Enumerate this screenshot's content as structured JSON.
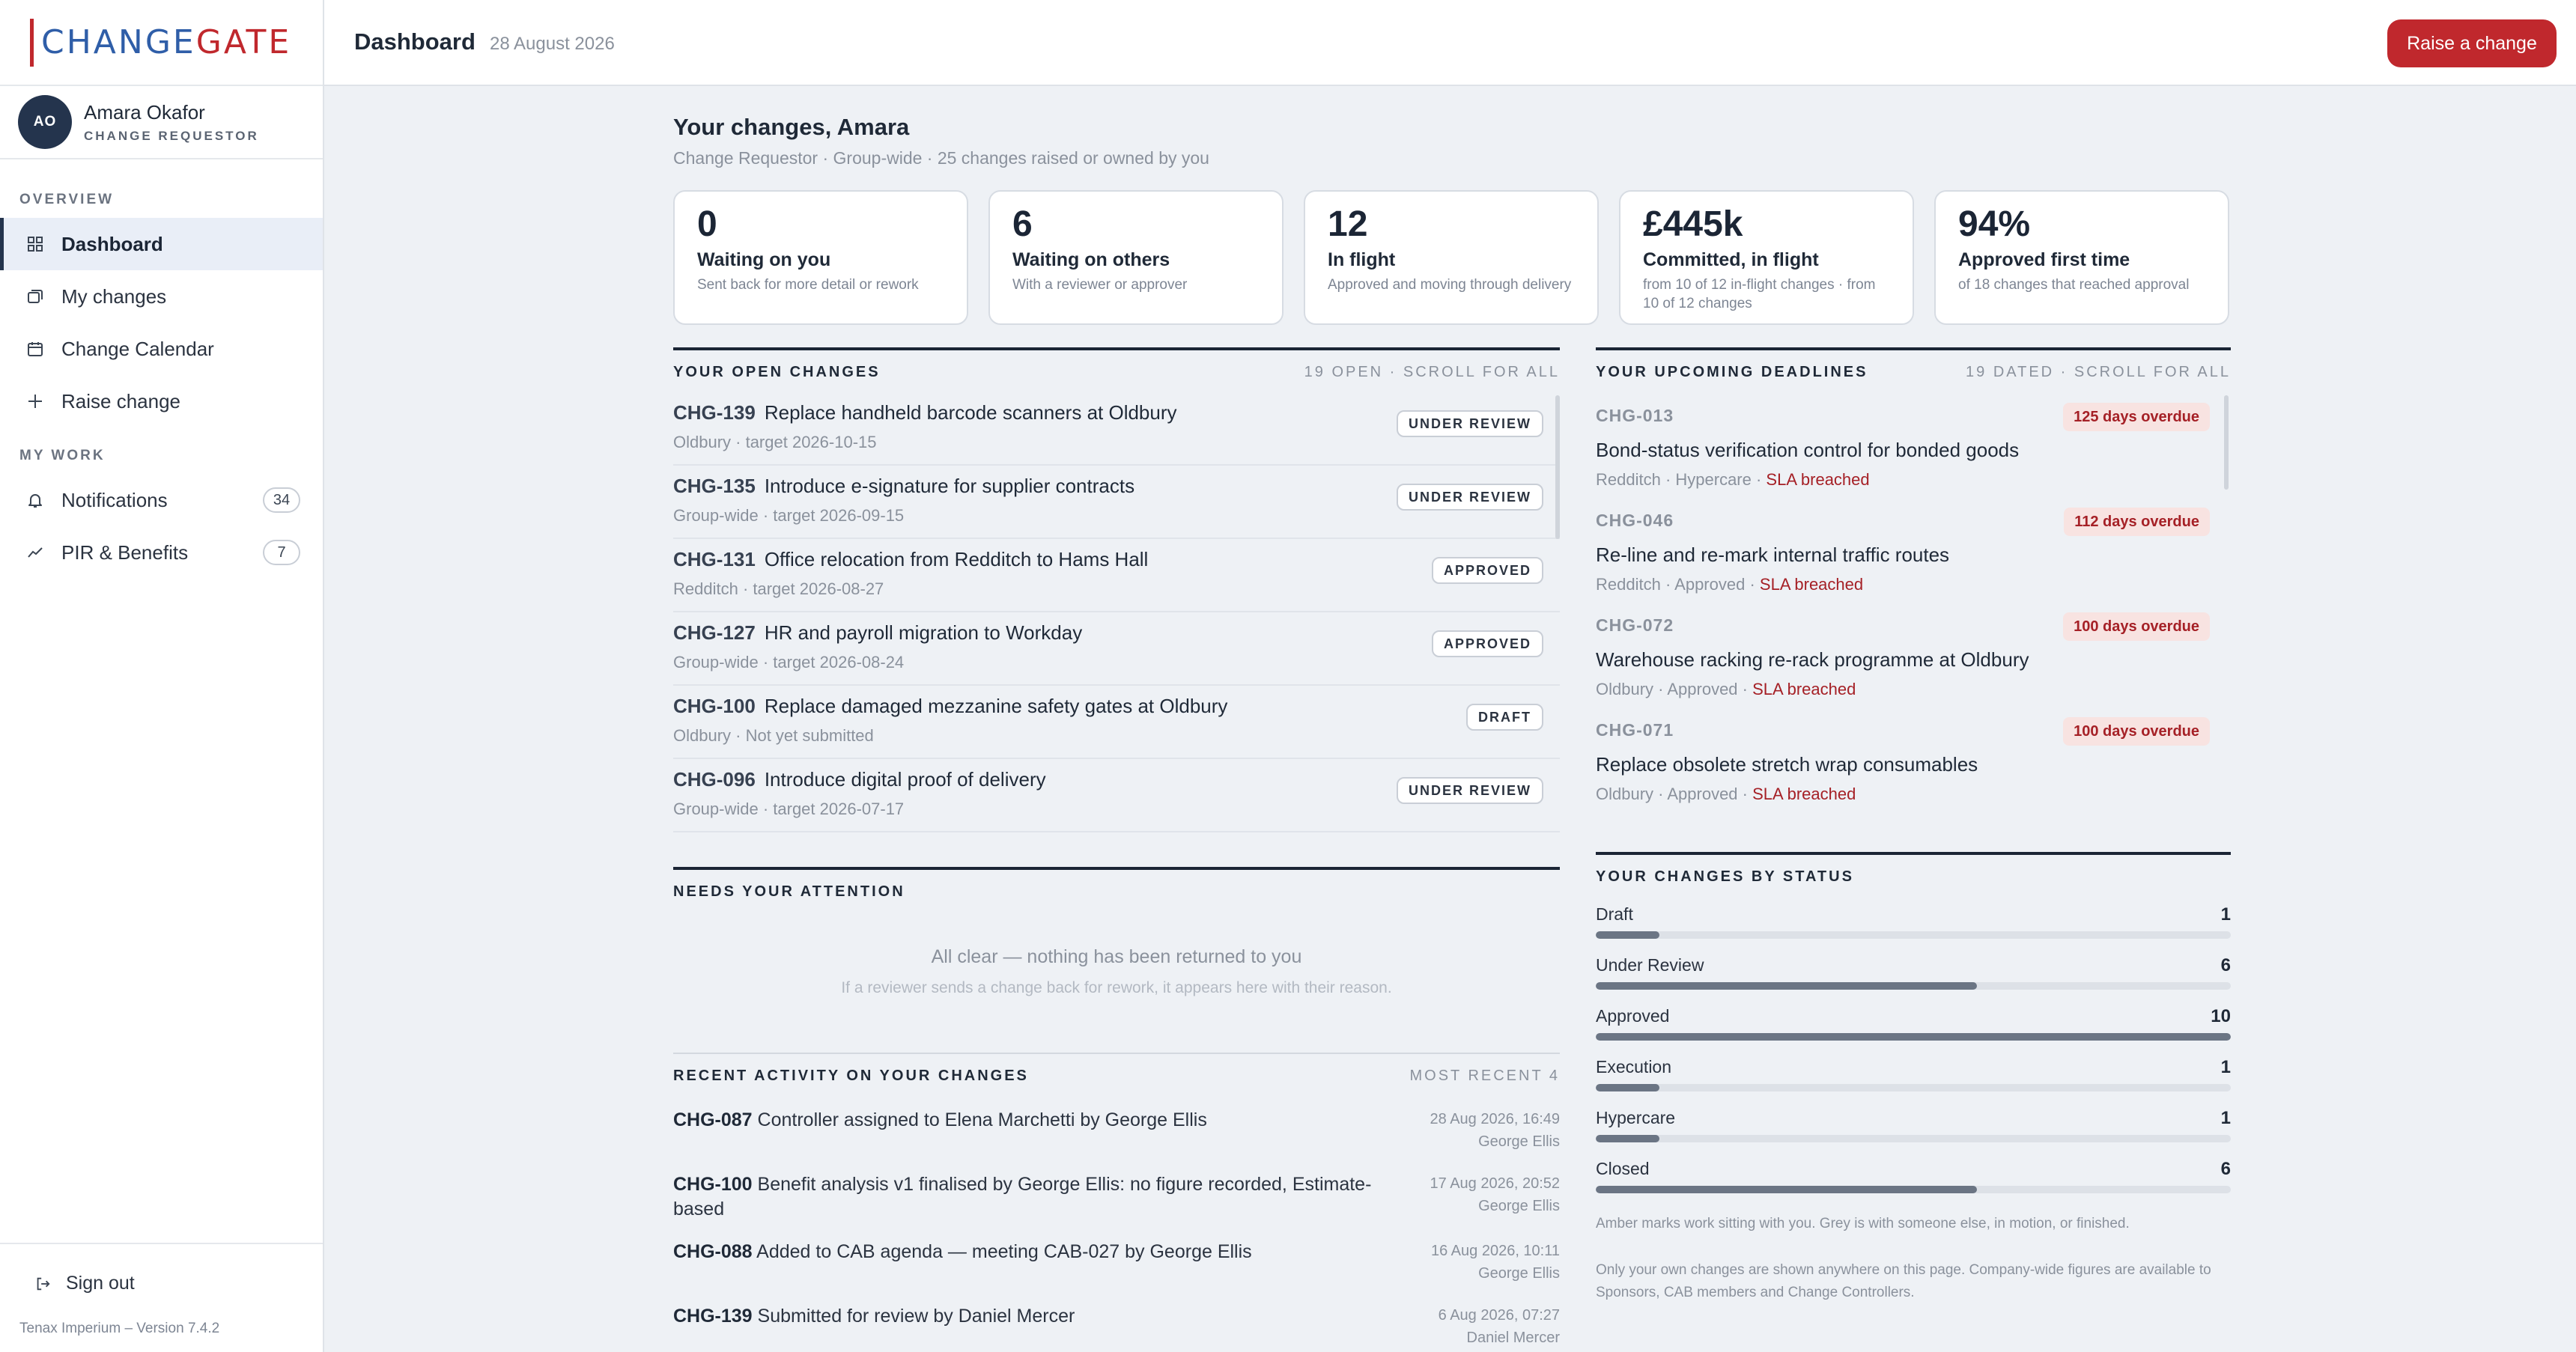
{
  "brand": {
    "part1": "CHANGE",
    "part2": "GATE"
  },
  "user": {
    "initials": "AO",
    "name": "Amara Okafor",
    "role": "CHANGE REQUESTOR"
  },
  "nav": {
    "overview_label": "OVERVIEW",
    "mywork_label": "MY WORK",
    "items": [
      {
        "label": "Dashboard",
        "icon": "grid-icon",
        "active": true
      },
      {
        "label": "My changes",
        "icon": "stack-icon"
      },
      {
        "label": "Change Calendar",
        "icon": "calendar-icon"
      },
      {
        "label": "Raise change",
        "icon": "plus-icon"
      },
      {
        "label": "Notifications",
        "icon": "bell-icon",
        "badge": "34"
      },
      {
        "label": "PIR & Benefits",
        "icon": "trend-icon",
        "badge": "7"
      }
    ],
    "signout": "Sign out"
  },
  "version": "Tenax Imperium – Version 7.4.2",
  "header": {
    "title": "Dashboard",
    "date": "28 August 2026",
    "raise_label": "Raise a change"
  },
  "greeting": {
    "title": "Your changes, Amara",
    "subtitle": "Change Requestor · Group-wide · 25 changes raised or owned by you"
  },
  "kpis": [
    {
      "value": "0",
      "label": "Waiting on you",
      "desc": "Sent back for more detail or rework"
    },
    {
      "value": "6",
      "label": "Waiting on others",
      "desc": "With a reviewer or approver"
    },
    {
      "value": "12",
      "label": "In flight",
      "desc": "Approved and moving through delivery"
    },
    {
      "value": "£445k",
      "label": "Committed, in flight",
      "desc": "from 10 of 12 in-flight changes · from 10 of 12 changes"
    },
    {
      "value": "94%",
      "label": "Approved first time",
      "desc": "of 18 changes that reached approval"
    }
  ],
  "open_changes": {
    "title": "YOUR OPEN CHANGES",
    "note": "19 OPEN · SCROLL FOR ALL",
    "rows": [
      {
        "id": "CHG-139",
        "title": "Replace handheld barcode scanners at Oldbury",
        "meta": "Oldbury · target 2026-10-15",
        "status": "UNDER REVIEW"
      },
      {
        "id": "CHG-135",
        "title": "Introduce e-signature for supplier contracts",
        "meta": "Group-wide · target 2026-09-15",
        "status": "UNDER REVIEW"
      },
      {
        "id": "CHG-131",
        "title": "Office relocation from Redditch to Hams Hall",
        "meta": "Redditch · target 2026-08-27",
        "status": "APPROVED"
      },
      {
        "id": "CHG-127",
        "title": "HR and payroll migration to Workday",
        "meta": "Group-wide · target 2026-08-24",
        "status": "APPROVED"
      },
      {
        "id": "CHG-100",
        "title": "Replace damaged mezzanine safety gates at Oldbury",
        "meta": "Oldbury · Not yet submitted",
        "status": "DRAFT"
      },
      {
        "id": "CHG-096",
        "title": "Introduce digital proof of delivery",
        "meta": "Group-wide · target 2026-07-17",
        "status": "UNDER REVIEW"
      }
    ]
  },
  "deadlines": {
    "title": "YOUR UPCOMING DEADLINES",
    "note": "19 DATED · SCROLL FOR ALL",
    "rows": [
      {
        "id": "CHG-013",
        "badge": "125 days overdue",
        "title": "Bond-status verification control for bonded goods",
        "meta": "Redditch · Hypercare · ",
        "sla": "SLA breached"
      },
      {
        "id": "CHG-046",
        "badge": "112 days overdue",
        "title": "Re-line and re-mark internal traffic routes",
        "meta": "Redditch · Approved · ",
        "sla": "SLA breached"
      },
      {
        "id": "CHG-072",
        "badge": "100 days overdue",
        "title": "Warehouse racking re-rack programme at Oldbury",
        "meta": "Oldbury · Approved · ",
        "sla": "SLA breached"
      },
      {
        "id": "CHG-071",
        "badge": "100 days overdue",
        "title": "Replace obsolete stretch wrap consumables",
        "meta": "Oldbury · Approved · ",
        "sla": "SLA breached"
      }
    ]
  },
  "attention": {
    "title": "NEEDS YOUR ATTENTION",
    "empty_title": "All clear — nothing has been returned to you",
    "empty_sub": "If a reviewer sends a change back for rework, it appears here with their reason."
  },
  "activity": {
    "title": "RECENT ACTIVITY ON YOUR CHANGES",
    "note": "MOST RECENT 4",
    "rows": [
      {
        "id": "CHG-087",
        "text": "Controller assigned to Elena Marchetti by George Ellis",
        "when": "28 Aug 2026, 16:49",
        "who": "George Ellis"
      },
      {
        "id": "CHG-100",
        "text": "Benefit analysis v1 finalised by George Ellis: no figure recorded, Estimate-based",
        "when": "17 Aug 2026, 20:52",
        "who": "George Ellis"
      },
      {
        "id": "CHG-088",
        "text": "Added to CAB agenda — meeting CAB-027 by George Ellis",
        "when": "16 Aug 2026, 10:11",
        "who": "George Ellis"
      },
      {
        "id": "CHG-139",
        "text": "Submitted for review by Daniel Mercer",
        "when": "6 Aug 2026, 07:27",
        "who": "Daniel Mercer"
      }
    ]
  },
  "by_status": {
    "title": "YOUR CHANGES BY STATUS",
    "rows": [
      {
        "label": "Draft",
        "count": "1",
        "fraction": 0.1
      },
      {
        "label": "Under Review",
        "count": "6",
        "fraction": 0.6
      },
      {
        "label": "Approved",
        "count": "10",
        "fraction": 1.0
      },
      {
        "label": "Execution",
        "count": "1",
        "fraction": 0.1
      },
      {
        "label": "Hypercare",
        "count": "1",
        "fraction": 0.1
      },
      {
        "label": "Closed",
        "count": "6",
        "fraction": 0.6
      }
    ],
    "note1": "Amber marks work sitting with you. Grey is with someone else, in motion, or finished.",
    "note2": "Only your own changes are shown anywhere on this page. Company-wide figures are available to Sponsors, CAB members and Change Controllers."
  },
  "colors": {
    "accent": "#c0282d",
    "brand_blue": "#2f5ea8",
    "navy": "#24344d",
    "overdue_bg": "#f8e3e1",
    "overdue_text": "#a52026"
  }
}
